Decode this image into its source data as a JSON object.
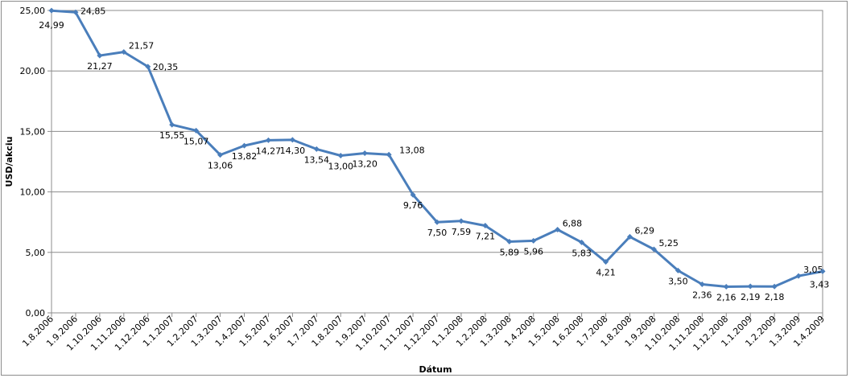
{
  "chart_data": {
    "type": "line",
    "title": "",
    "xlabel": "Dátum",
    "ylabel": "USD/akciu",
    "ylim": [
      0,
      25
    ],
    "yticks": [
      "0,00",
      "5,00",
      "10,00",
      "15,00",
      "20,00",
      "25,00"
    ],
    "grid": true,
    "legend": "none",
    "series_color": "#4a7ebb",
    "categories": [
      "1.8.2006",
      "1.9.2006",
      "1.10.2006",
      "1.11.2006",
      "1.12.2006",
      "1.1.2007",
      "1.2.2007",
      "1.3.2007",
      "1.4.2007",
      "1.5.2007",
      "1.6.2007",
      "1.7.2007",
      "1.8.2007",
      "1.9.2007",
      "1.10.2007",
      "1.11.2007",
      "1.12.2007",
      "1.1.2008",
      "1.2.2008",
      "1.3.2008",
      "1.4.2008",
      "1.5.2008",
      "1.6.2008",
      "1.7.2008",
      "1.8.2008",
      "1.9.2008",
      "1.10.2008",
      "1.11.2008",
      "1.12.2008",
      "1.1.2009",
      "1.2.2009",
      "1.3.2009",
      "1.4.2009"
    ],
    "values": [
      24.99,
      24.85,
      21.27,
      21.57,
      20.35,
      15.55,
      15.07,
      13.06,
      13.82,
      14.27,
      14.3,
      13.54,
      13.0,
      13.2,
      13.08,
      9.76,
      7.5,
      7.59,
      7.21,
      5.89,
      5.96,
      6.88,
      5.83,
      4.21,
      6.29,
      5.25,
      3.5,
      2.36,
      2.16,
      2.19,
      2.18,
      3.05,
      3.43
    ],
    "data_labels": [
      "24,99",
      "24,85",
      "21,27",
      "21,57",
      "20,35",
      "15,55",
      "15,07",
      "13,06",
      "13,82",
      "14,27",
      "14,30",
      "13,54",
      "13,00",
      "13,20",
      "13,08",
      "9,76",
      "7,50",
      "7,59",
      "7,21",
      "5,89",
      "5,96",
      "6,88",
      "5,83",
      "4,21",
      "6,29",
      "5,25",
      "3,50",
      "2,36",
      "2,16",
      "2,19",
      "2,18",
      "3,05",
      "3,43"
    ]
  }
}
